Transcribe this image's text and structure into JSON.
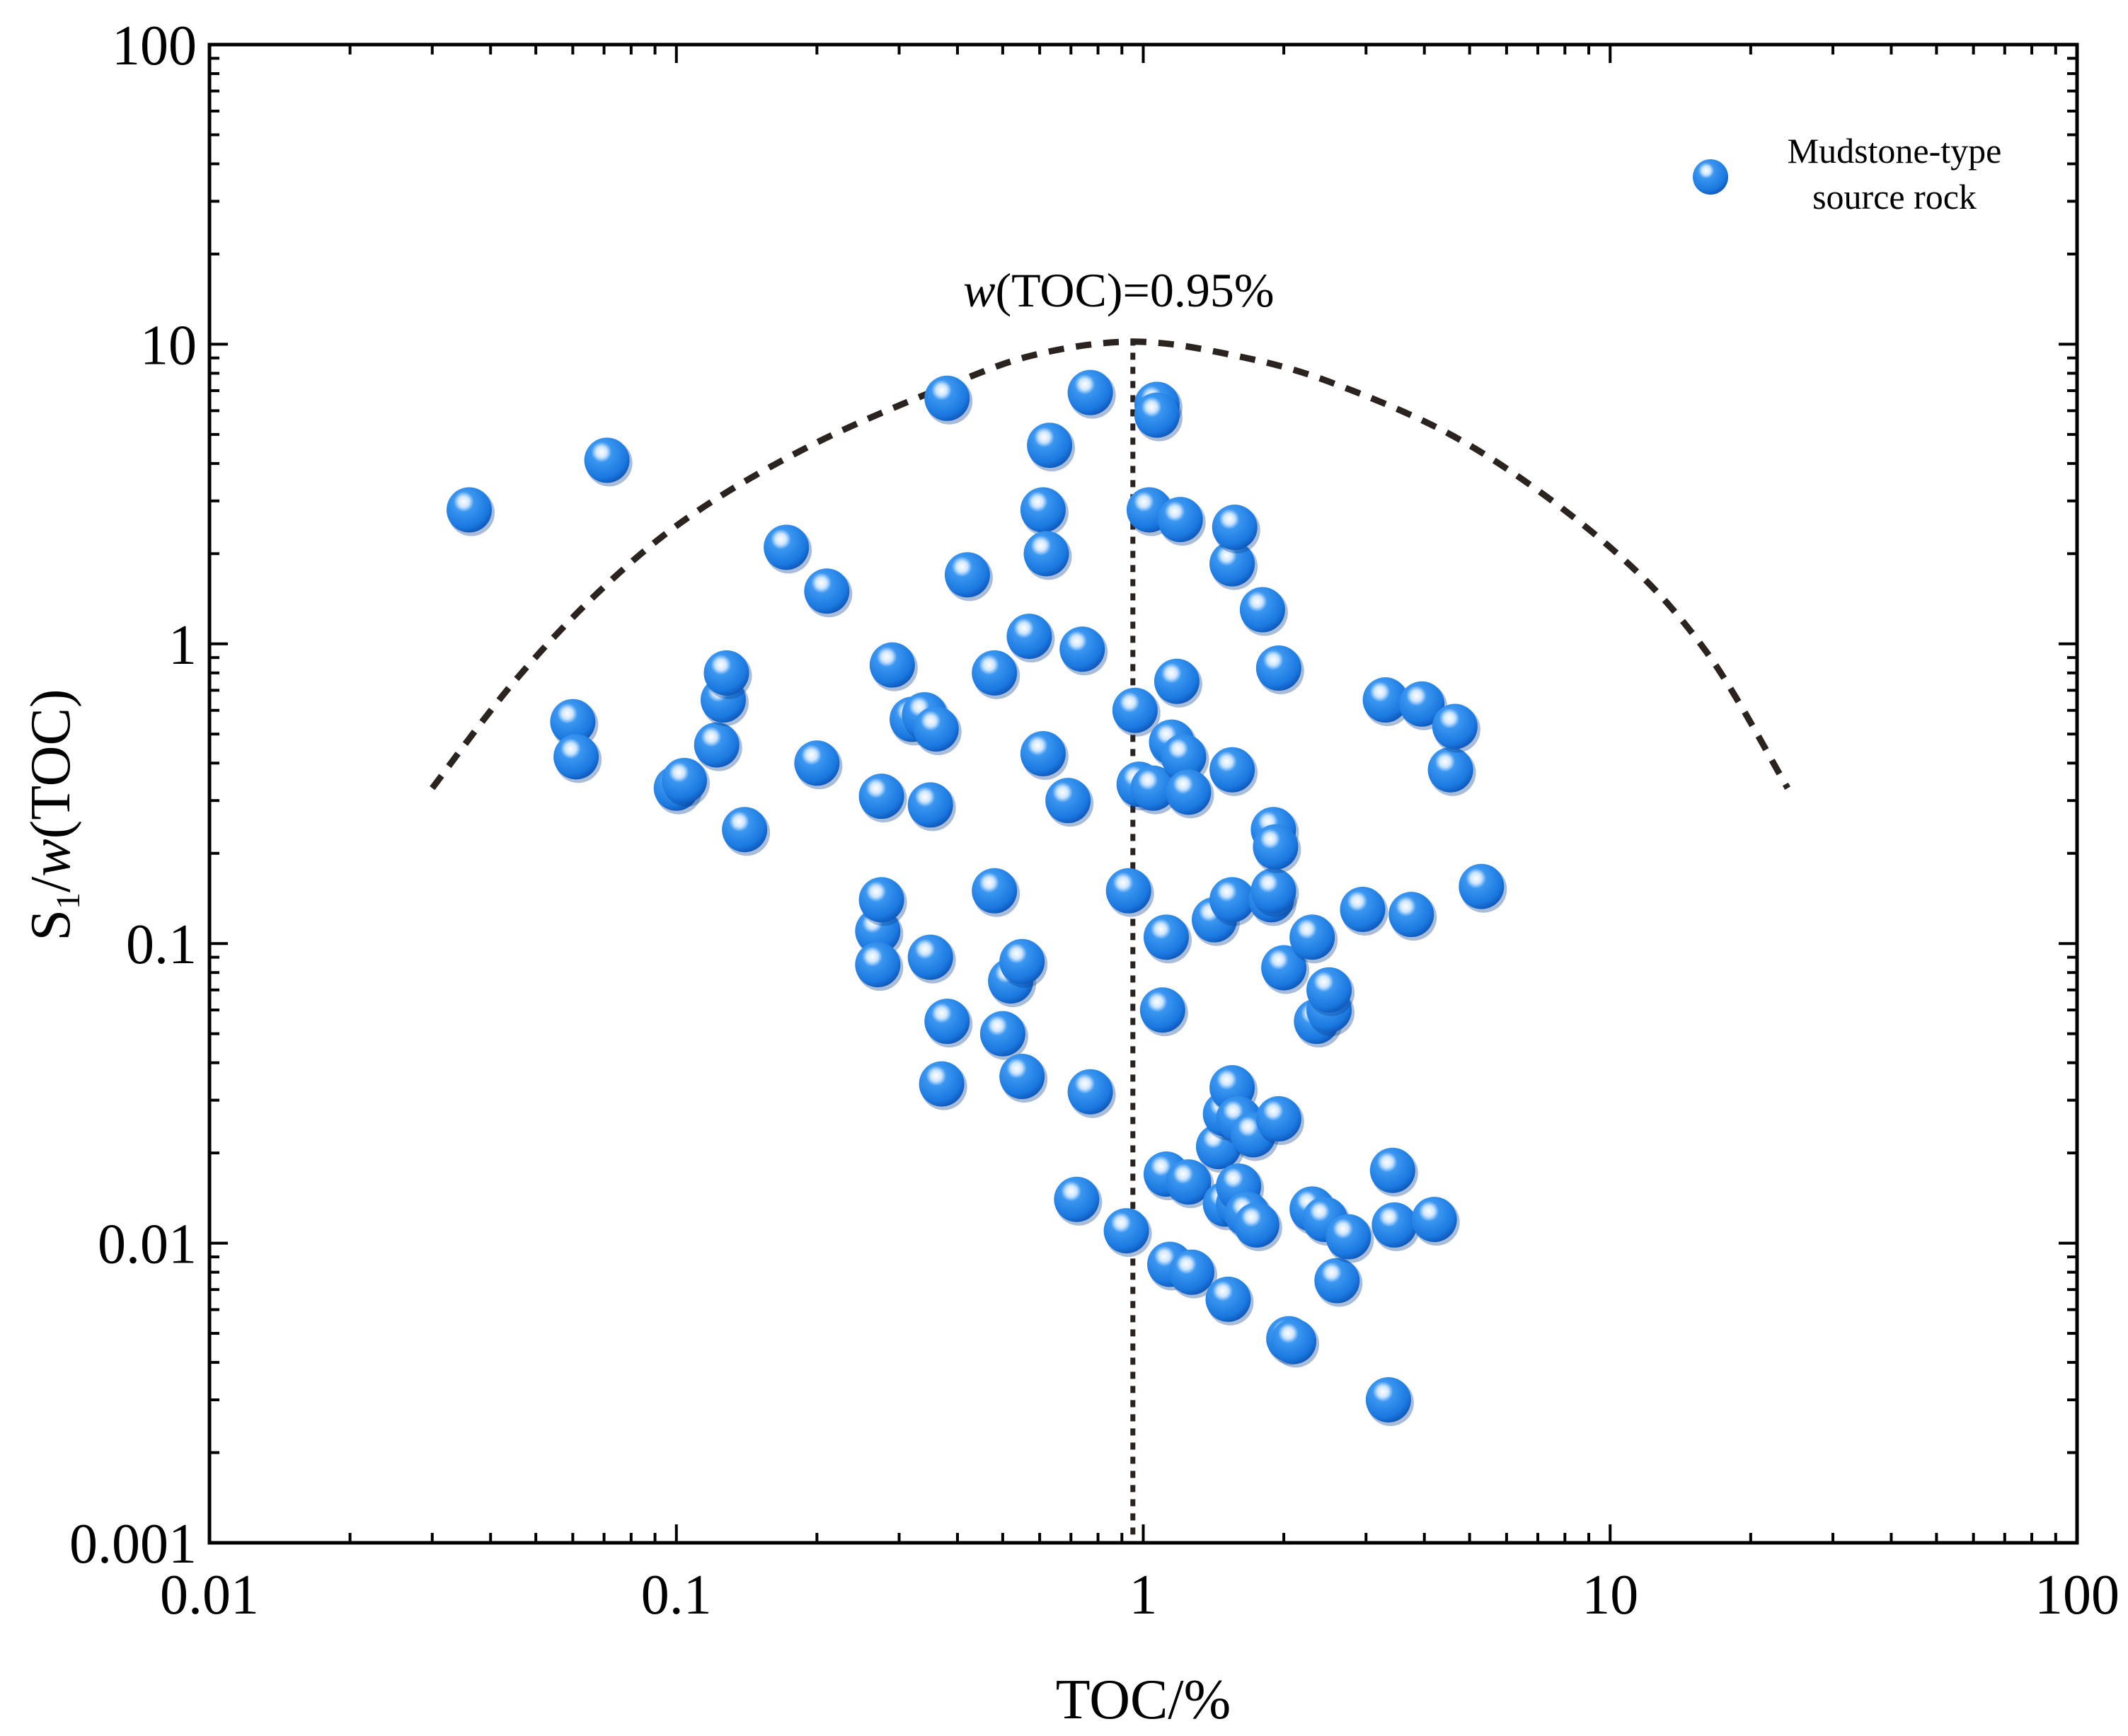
{
  "chart_data": {
    "type": "scatter",
    "xscale": "log",
    "yscale": "log",
    "xlim": [
      0.01,
      100
    ],
    "ylim": [
      0.001,
      100
    ],
    "grid": false,
    "xticks": [
      "0.01",
      "0.1",
      "1",
      "10",
      "100"
    ],
    "yticks": [
      "0.001",
      "0.01",
      "0.1",
      "1",
      "10",
      "100"
    ],
    "xlabel": "TOC/%",
    "ylabel": {
      "s": "S",
      "sub": "1",
      "slash": "/",
      "w": "w",
      "rest": "(TOC)"
    },
    "annotation": {
      "w": "w",
      "rest": "(TOC)=0.95%",
      "x": 0.95
    },
    "legend": {
      "position": "top-right",
      "line1": "Mudstone-type",
      "line2": "source rock"
    },
    "colors": {
      "marker": "#1a78e0",
      "marker_dark": "#0b4fb0",
      "curve": "#2b2320"
    },
    "envelope_curve": {
      "style": "dashed",
      "points": [
        [
          0.03,
          0.33
        ],
        [
          0.045,
          0.75
        ],
        [
          0.07,
          1.55
        ],
        [
          0.11,
          2.75
        ],
        [
          0.2,
          4.7
        ],
        [
          0.4,
          7.5
        ],
        [
          0.6,
          9.3
        ],
        [
          0.95,
          10.2
        ],
        [
          1.5,
          9.3
        ],
        [
          2.5,
          7.5
        ],
        [
          5,
          4.6
        ],
        [
          10,
          2.1
        ],
        [
          16,
          0.95
        ],
        [
          24,
          0.33
        ]
      ]
    },
    "series": [
      {
        "points": [
          [
            0.036,
            2.8
          ],
          [
            0.071,
            4.1
          ],
          [
            0.06,
            0.55
          ],
          [
            0.061,
            0.42
          ],
          [
            0.1,
            0.33
          ],
          [
            0.104,
            0.35
          ],
          [
            0.122,
            0.46
          ],
          [
            0.126,
            0.65
          ],
          [
            0.128,
            0.8
          ],
          [
            0.14,
            0.24
          ],
          [
            0.172,
            2.1
          ],
          [
            0.2,
            0.4
          ],
          [
            0.21,
            1.5
          ],
          [
            0.27,
            0.11
          ],
          [
            0.27,
            0.085
          ],
          [
            0.275,
            0.14
          ],
          [
            0.275,
            0.31
          ],
          [
            0.29,
            0.85
          ],
          [
            0.32,
            0.56
          ],
          [
            0.34,
            0.58
          ],
          [
            0.36,
            0.52
          ],
          [
            0.35,
            0.29
          ],
          [
            0.35,
            0.09
          ],
          [
            0.37,
            0.034
          ],
          [
            0.38,
            0.055
          ],
          [
            0.38,
            6.6
          ],
          [
            0.42,
            1.7
          ],
          [
            0.48,
            0.15
          ],
          [
            0.48,
            0.8
          ],
          [
            0.5,
            0.05
          ],
          [
            0.52,
            0.075
          ],
          [
            0.55,
            0.087
          ],
          [
            0.55,
            0.036
          ],
          [
            0.57,
            1.06
          ],
          [
            0.61,
            0.43
          ],
          [
            0.61,
            2.8
          ],
          [
            0.62,
            2.0
          ],
          [
            0.63,
            4.6
          ],
          [
            0.69,
            0.3
          ],
          [
            0.72,
            0.014
          ],
          [
            0.74,
            0.96
          ],
          [
            0.77,
            0.032
          ],
          [
            0.77,
            6.9
          ],
          [
            0.92,
            0.011
          ],
          [
            0.93,
            0.15
          ],
          [
            0.96,
            0.6
          ],
          [
            0.98,
            0.34
          ],
          [
            1.03,
            2.8
          ],
          [
            1.05,
            0.33
          ],
          [
            1.07,
            6.3
          ],
          [
            1.07,
            5.8
          ],
          [
            1.1,
            0.06
          ],
          [
            1.12,
            0.105
          ],
          [
            1.12,
            0.017
          ],
          [
            1.14,
            0.0085
          ],
          [
            1.15,
            0.47
          ],
          [
            1.18,
            0.75
          ],
          [
            1.2,
            2.6
          ],
          [
            1.22,
            0.42
          ],
          [
            1.25,
            0.016
          ],
          [
            1.25,
            0.32
          ],
          [
            1.27,
            0.008
          ],
          [
            1.42,
            0.12
          ],
          [
            1.45,
            0.021
          ],
          [
            1.5,
            0.027
          ],
          [
            1.5,
            0.0135
          ],
          [
            1.52,
            0.0065
          ],
          [
            1.55,
            0.033
          ],
          [
            1.55,
            0.38
          ],
          [
            1.55,
            0.14
          ],
          [
            1.55,
            1.85
          ],
          [
            1.57,
            2.45
          ],
          [
            1.6,
            0.026
          ],
          [
            1.6,
            0.0135
          ],
          [
            1.6,
            0.0155
          ],
          [
            1.67,
            0.0125
          ],
          [
            1.72,
            0.023
          ],
          [
            1.75,
            0.0115
          ],
          [
            1.8,
            1.3
          ],
          [
            1.88,
            0.14
          ],
          [
            1.9,
            0.15
          ],
          [
            1.9,
            0.24
          ],
          [
            1.92,
            0.21
          ],
          [
            1.95,
            0.026
          ],
          [
            1.95,
            0.83
          ],
          [
            2.0,
            0.083
          ],
          [
            2.05,
            0.0048
          ],
          [
            2.1,
            0.0047
          ],
          [
            2.3,
            0.105
          ],
          [
            2.3,
            0.013
          ],
          [
            2.35,
            0.055
          ],
          [
            2.45,
            0.012
          ],
          [
            2.5,
            0.06
          ],
          [
            2.5,
            0.07
          ],
          [
            2.6,
            0.0075
          ],
          [
            2.75,
            0.0105
          ],
          [
            2.95,
            0.13
          ],
          [
            3.3,
            0.65
          ],
          [
            3.35,
            0.003
          ],
          [
            3.42,
            0.0175
          ],
          [
            3.45,
            0.0115
          ],
          [
            3.75,
            0.125
          ],
          [
            3.95,
            0.63
          ],
          [
            4.2,
            0.012
          ],
          [
            4.55,
            0.38
          ],
          [
            4.65,
            0.53
          ],
          [
            5.3,
            0.155
          ]
        ]
      }
    ]
  }
}
